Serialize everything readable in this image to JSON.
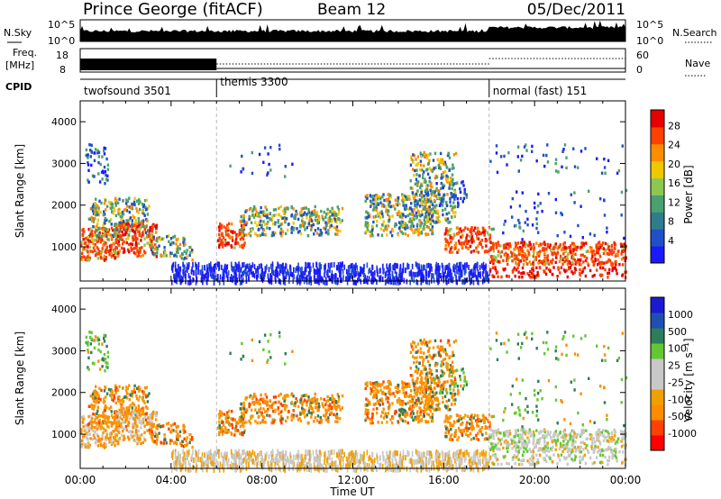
{
  "header": {
    "station": "Prince George (fitACF)",
    "beam": "Beam 12",
    "date": "05/Dec/2011"
  },
  "panel_labels": {
    "nsky": "N.Sky",
    "nsky_ticks": [
      "10^5",
      "10^0"
    ],
    "nsearch": "N.Search",
    "nsearch_ticks": [
      "10^5",
      "10^0"
    ],
    "freq": "Freq.",
    "freq_unit": "[MHz]",
    "freq_ticks": [
      "18",
      "8"
    ],
    "nave": "Nave",
    "nave_ticks": [
      "60",
      "0"
    ],
    "cpid": "CPID"
  },
  "cpid_segments": [
    {
      "name": "twofsound 3501",
      "start": 0,
      "end": 6
    },
    {
      "name": "themis 3300",
      "start": 6,
      "end": 18
    },
    {
      "name": "normal (fast) 151",
      "start": 18,
      "end": 24
    }
  ],
  "colors": {
    "power": [
      "#1a1aff",
      "#2050c8",
      "#2e7d8c",
      "#4aa070",
      "#8cc850",
      "#f0c800",
      "#ff8c00",
      "#ff4000",
      "#e60000"
    ],
    "velocity": [
      "#ff0000",
      "#ff4000",
      "#ff8c00",
      "#f0a000",
      "#c8c8c8",
      "#c8c8c8",
      "#64c832",
      "#2e7d5a",
      "#1e50b4",
      "#1a1ad2"
    ]
  },
  "chart_data": [
    {
      "type": "heatmap",
      "title": "",
      "xlabel": "",
      "ylabel": "Slant Range [km]",
      "xlim": [
        0,
        24
      ],
      "ylim": [
        180,
        4500
      ],
      "yticks": [
        1000,
        2000,
        3000,
        4000
      ],
      "colorbar": {
        "label": "Power [dB]",
        "ticks": [
          "4",
          "8",
          "12",
          "16",
          "20",
          "24",
          "28"
        ],
        "range": [
          0,
          30
        ]
      }
    },
    {
      "type": "heatmap",
      "title": "",
      "xlabel": "Time UT",
      "ylabel": "Slant Range [km]",
      "xlim": [
        0,
        24
      ],
      "ylim": [
        180,
        4500
      ],
      "xticks": [
        "00:00",
        "04:00",
        "08:00",
        "12:00",
        "16:00",
        "20:00",
        "00:00"
      ],
      "yticks": [
        1000,
        2000,
        3000,
        4000
      ],
      "colorbar": {
        "label": "Velocity [m s⁻¹]",
        "ticks": [
          "1000",
          "500",
          "100",
          "25",
          "-25",
          "-100",
          "-500",
          "-1000"
        ]
      }
    }
  ]
}
